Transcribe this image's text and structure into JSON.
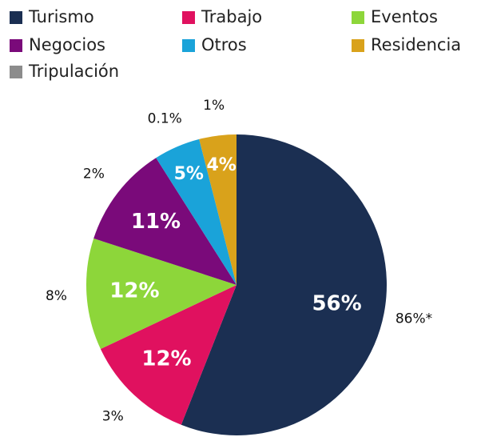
{
  "chart_data": {
    "type": "pie",
    "categories": [
      "Turismo",
      "Trabajo",
      "Eventos",
      "Negocios",
      "Otros",
      "Residencia",
      "Tripulación"
    ],
    "values": [
      56,
      12,
      12,
      11,
      5,
      4,
      null
    ],
    "value_labels": [
      "56%",
      "12%",
      "12%",
      "11%",
      "5%",
      "4%",
      null
    ],
    "outer_labels": [
      "86%*",
      "3%",
      "8%",
      "2%",
      "0.1%",
      "1%",
      null
    ],
    "colors": [
      "#1b2f52",
      "#e0115f",
      "#8dd63a",
      "#7a0a7a",
      "#1aa3d9",
      "#d9a21b",
      "#8c8c8c"
    ]
  }
}
